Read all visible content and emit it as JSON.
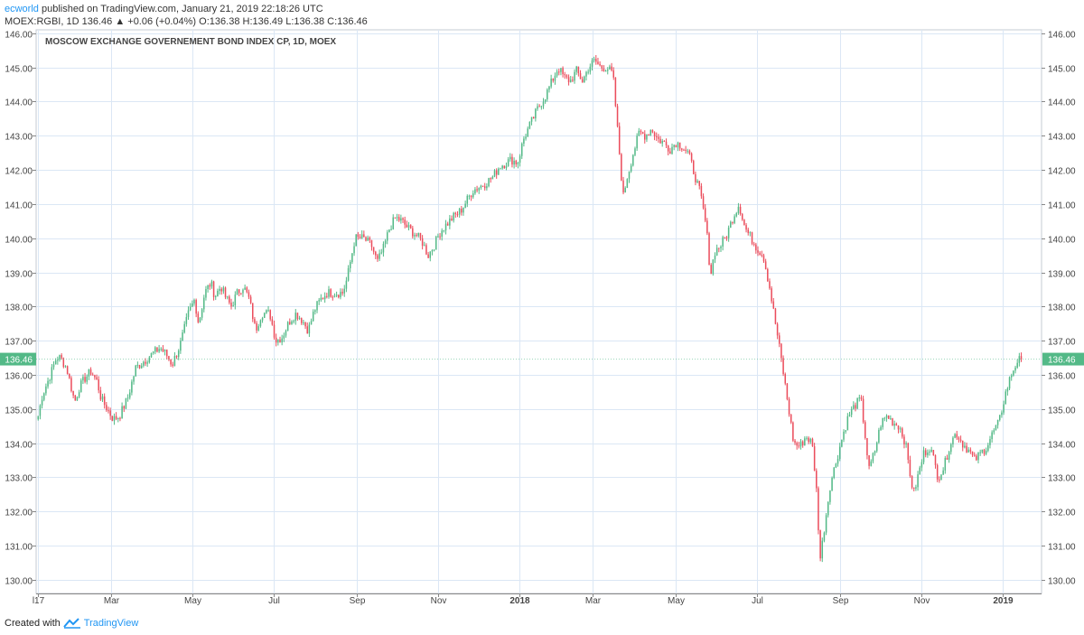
{
  "header": {
    "author": "ecworld",
    "published_text": "published on TradingView.com, January 21, 2019 22:18:26 UTC",
    "symbol": "MOEX:RGBI, 1D",
    "last": "136.46",
    "change_arrow": "▲",
    "change": "+0.06 (+0.04%)",
    "o_label": "O:",
    "o_val": "136.38",
    "h_label": "H:",
    "h_val": "136.49",
    "l_label": "L:",
    "l_val": "136.38",
    "c_label": "C:",
    "c_val": "136.46"
  },
  "footer": {
    "created_with": "Created with",
    "brand": "TradingView"
  },
  "colors": {
    "up": "#53b987",
    "down": "#eb4d5c",
    "grid": "#dbe7f5",
    "price_tag": "#53b987"
  },
  "chart_data": {
    "type": "candlestick",
    "title": "MOSCOW EXCHANGE GOVERNEMENT BOND INDEX CP, 1D, MOEX",
    "ylim": [
      129.6,
      146.1
    ],
    "yticks": [
      "130.00",
      "131.00",
      "132.00",
      "133.00",
      "134.00",
      "135.00",
      "136.00",
      "137.00",
      "138.00",
      "139.00",
      "140.00",
      "141.00",
      "142.00",
      "143.00",
      "144.00",
      "145.00",
      "146.00"
    ],
    "xticks": [
      {
        "label": "l17",
        "t": 0
      },
      {
        "label": "Mar",
        "t": 1.8
      },
      {
        "label": "May",
        "t": 3.8
      },
      {
        "label": "Jul",
        "t": 5.8
      },
      {
        "label": "Sep",
        "t": 7.85
      },
      {
        "label": "Nov",
        "t": 9.85
      },
      {
        "label": "2018",
        "t": 11.85
      },
      {
        "label": "Mar",
        "t": 13.65
      },
      {
        "label": "May",
        "t": 15.7
      },
      {
        "label": "Jul",
        "t": 17.7
      },
      {
        "label": "Sep",
        "t": 19.75
      },
      {
        "label": "Nov",
        "t": 21.75
      },
      {
        "label": "2019",
        "t": 23.75
      }
    ],
    "t_range": [
      -0.05,
      24.7
    ],
    "last_price": "136.46",
    "path": [
      [
        0,
        134.8
      ],
      [
        0.1,
        135.4
      ],
      [
        0.3,
        136.0
      ],
      [
        0.45,
        136.5
      ],
      [
        0.55,
        136.5
      ],
      [
        0.7,
        136.2
      ],
      [
        0.9,
        135.2
      ],
      [
        1.0,
        135.6
      ],
      [
        1.15,
        135.9
      ],
      [
        1.3,
        136.1
      ],
      [
        1.45,
        135.8
      ],
      [
        1.55,
        135.3
      ],
      [
        1.7,
        135.0
      ],
      [
        1.85,
        134.7
      ],
      [
        2.0,
        134.8
      ],
      [
        2.2,
        135.3
      ],
      [
        2.4,
        136.2
      ],
      [
        2.6,
        136.4
      ],
      [
        2.8,
        136.6
      ],
      [
        3.0,
        136.8
      ],
      [
        3.15,
        136.6
      ],
      [
        3.3,
        136.3
      ],
      [
        3.5,
        136.9
      ],
      [
        3.7,
        137.8
      ],
      [
        3.85,
        138.2
      ],
      [
        3.95,
        137.5
      ],
      [
        4.1,
        138.4
      ],
      [
        4.25,
        138.7
      ],
      [
        4.35,
        138.3
      ],
      [
        4.5,
        138.6
      ],
      [
        4.6,
        138.3
      ],
      [
        4.75,
        138.0
      ],
      [
        4.9,
        138.4
      ],
      [
        5.05,
        138.6
      ],
      [
        5.2,
        138.2
      ],
      [
        5.35,
        137.3
      ],
      [
        5.5,
        137.8
      ],
      [
        5.7,
        137.8
      ],
      [
        5.85,
        137.0
      ],
      [
        6.0,
        137.1
      ],
      [
        6.2,
        137.6
      ],
      [
        6.35,
        137.8
      ],
      [
        6.5,
        137.6
      ],
      [
        6.65,
        137.3
      ],
      [
        6.8,
        137.9
      ],
      [
        6.95,
        138.2
      ],
      [
        7.1,
        138.4
      ],
      [
        7.3,
        138.4
      ],
      [
        7.5,
        138.4
      ],
      [
        7.6,
        138.8
      ],
      [
        7.7,
        139.4
      ],
      [
        7.8,
        140.0
      ],
      [
        8.0,
        140.0
      ],
      [
        8.2,
        139.8
      ],
      [
        8.35,
        139.3
      ],
      [
        8.5,
        139.7
      ],
      [
        8.65,
        140.3
      ],
      [
        8.8,
        140.6
      ],
      [
        8.95,
        140.5
      ],
      [
        9.1,
        140.3
      ],
      [
        9.3,
        140.1
      ],
      [
        9.45,
        139.9
      ],
      [
        9.6,
        139.5
      ],
      [
        9.75,
        139.8
      ],
      [
        9.9,
        140.2
      ],
      [
        10.05,
        140.4
      ],
      [
        10.2,
        140.6
      ],
      [
        10.4,
        140.8
      ],
      [
        10.55,
        141.1
      ],
      [
        10.7,
        141.4
      ],
      [
        10.85,
        141.5
      ],
      [
        11.0,
        141.6
      ],
      [
        11.2,
        141.8
      ],
      [
        11.35,
        142.1
      ],
      [
        11.5,
        142.2
      ],
      [
        11.65,
        142.3
      ],
      [
        11.8,
        142.2
      ],
      [
        11.95,
        142.9
      ],
      [
        12.1,
        143.3
      ],
      [
        12.3,
        143.8
      ],
      [
        12.5,
        144.2
      ],
      [
        12.65,
        144.6
      ],
      [
        12.8,
        145.0
      ],
      [
        12.95,
        144.7
      ],
      [
        13.1,
        144.6
      ],
      [
        13.25,
        144.9
      ],
      [
        13.4,
        144.6
      ],
      [
        13.55,
        145.0
      ],
      [
        13.7,
        145.2
      ],
      [
        13.85,
        145.0
      ],
      [
        14.0,
        145.0
      ],
      [
        14.15,
        144.8
      ],
      [
        14.3,
        142.6
      ],
      [
        14.4,
        141.2
      ],
      [
        14.5,
        141.8
      ],
      [
        14.65,
        142.5
      ],
      [
        14.8,
        143.1
      ],
      [
        14.95,
        143.0
      ],
      [
        15.1,
        143.2
      ],
      [
        15.25,
        142.9
      ],
      [
        15.4,
        142.8
      ],
      [
        15.55,
        142.6
      ],
      [
        15.7,
        142.8
      ],
      [
        15.85,
        142.7
      ],
      [
        16.0,
        142.5
      ],
      [
        16.15,
        141.9
      ],
      [
        16.3,
        141.3
      ],
      [
        16.45,
        140.3
      ],
      [
        16.55,
        138.9
      ],
      [
        16.65,
        139.6
      ],
      [
        16.8,
        139.8
      ],
      [
        16.95,
        140.1
      ],
      [
        17.1,
        140.6
      ],
      [
        17.25,
        141.0
      ],
      [
        17.4,
        140.3
      ],
      [
        17.55,
        140.0
      ],
      [
        17.7,
        139.7
      ],
      [
        17.85,
        139.5
      ],
      [
        18.0,
        138.6
      ],
      [
        18.15,
        137.5
      ],
      [
        18.3,
        136.4
      ],
      [
        18.45,
        135.2
      ],
      [
        18.6,
        134.0
      ],
      [
        18.75,
        133.9
      ],
      [
        18.9,
        134.2
      ],
      [
        19.05,
        134.0
      ],
      [
        19.15,
        132.8
      ],
      [
        19.25,
        130.6
      ],
      [
        19.35,
        131.5
      ],
      [
        19.5,
        132.8
      ],
      [
        19.65,
        133.5
      ],
      [
        19.8,
        134.2
      ],
      [
        19.95,
        134.8
      ],
      [
        20.1,
        135.1
      ],
      [
        20.25,
        135.3
      ],
      [
        20.35,
        134.3
      ],
      [
        20.45,
        133.2
      ],
      [
        20.6,
        133.8
      ],
      [
        20.75,
        134.6
      ],
      [
        20.9,
        134.8
      ],
      [
        21.05,
        134.6
      ],
      [
        21.2,
        134.5
      ],
      [
        21.35,
        134.0
      ],
      [
        21.45,
        133.2
      ],
      [
        21.55,
        132.5
      ],
      [
        21.65,
        133.0
      ],
      [
        21.8,
        133.7
      ],
      [
        21.95,
        133.9
      ],
      [
        22.05,
        133.5
      ],
      [
        22.15,
        133.0
      ],
      [
        22.3,
        133.3
      ],
      [
        22.45,
        134.0
      ],
      [
        22.6,
        134.3
      ],
      [
        22.75,
        134.0
      ],
      [
        22.9,
        133.8
      ],
      [
        23.05,
        133.5
      ],
      [
        23.2,
        133.7
      ],
      [
        23.35,
        133.9
      ],
      [
        23.5,
        134.3
      ],
      [
        23.65,
        134.6
      ],
      [
        23.8,
        135.4
      ],
      [
        23.95,
        136.0
      ],
      [
        24.1,
        136.4
      ],
      [
        24.2,
        136.46
      ]
    ]
  }
}
